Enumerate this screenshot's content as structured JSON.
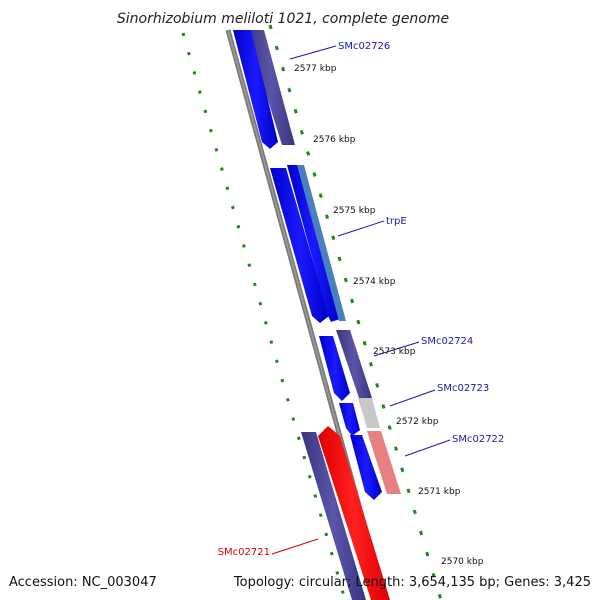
{
  "title": "Sinorhizobium meliloti 1021, complete genome",
  "footer": {
    "accession": "Accession: NC_003047",
    "summary": "Topology: circular; Length: 3,654,135 bp; Genes: 3,425"
  },
  "ticks": [
    "2577 kbp",
    "2576 kbp",
    "2575 kbp",
    "2574 kbp",
    "2573 kbp",
    "2572 kbp",
    "2571 kbp",
    "2570 kbp"
  ],
  "gene_labels": [
    {
      "name": "SMc02726",
      "color": "#1a1aa6"
    },
    {
      "name": "trpE",
      "color": "#1a1aa6"
    },
    {
      "name": "SMc02724",
      "color": "#1a1aa6"
    },
    {
      "name": "SMc02723",
      "color": "#1a1aa6"
    },
    {
      "name": "SMc02722",
      "color": "#1a1aa6"
    },
    {
      "name": "SMc02721",
      "color": "#d40000"
    }
  ],
  "colors": {
    "cds_blue": "#0000ee",
    "cds_slate": "#4a4594",
    "cds_red": "#ff0000",
    "rna_steel": "#4a7fc0",
    "pseudo_gray": "#c8c8c8",
    "pseudo_pink": "#e88080",
    "backbone": "#7a7a7a",
    "gc_skew": "#1a8a1a"
  }
}
